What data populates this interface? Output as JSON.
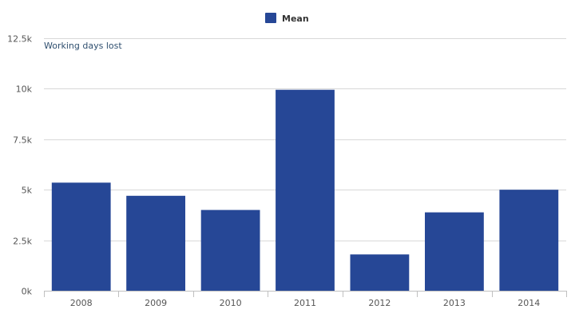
{
  "chart_data": {
    "type": "bar",
    "categories": [
      "2008",
      "2009",
      "2010",
      "2011",
      "2012",
      "2013",
      "2014"
    ],
    "series": [
      {
        "name": "Mean",
        "values": [
          5350,
          4700,
          4000,
          9950,
          1800,
          3880,
          5000
        ],
        "color": "#264796"
      }
    ],
    "ylabel": "Working days lost",
    "ylim": [
      0,
      12500
    ],
    "yticks": [
      {
        "value": 0,
        "label": "0k"
      },
      {
        "value": 2500,
        "label": "2.5k"
      },
      {
        "value": 5000,
        "label": "5k"
      },
      {
        "value": 7500,
        "label": "7.5k"
      },
      {
        "value": 10000,
        "label": "10k"
      },
      {
        "value": 12500,
        "label": "12.5k"
      }
    ],
    "grid": true,
    "legend_position": "top-center"
  }
}
